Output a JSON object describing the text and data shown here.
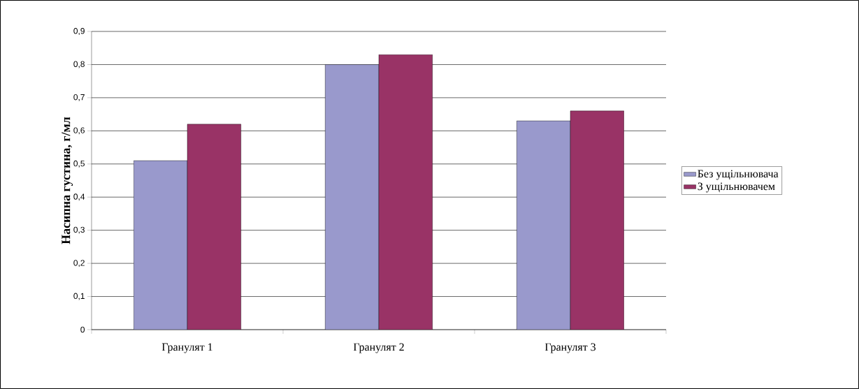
{
  "chart_data": {
    "type": "bar",
    "ylabel": "Насипна густина, г/мл",
    "categories": [
      "Гранулят 1",
      "Гранулят 2",
      "Гранулят 3"
    ],
    "series": [
      {
        "name": "Без ущільнювача",
        "color": "#9999cc",
        "values": [
          0.51,
          0.8,
          0.63
        ]
      },
      {
        "name": "З ущільнювачем",
        "color": "#993366",
        "values": [
          0.62,
          0.83,
          0.66
        ]
      }
    ],
    "ylim": [
      0,
      0.9
    ],
    "yticks": [
      {
        "value": 0,
        "label": "0"
      },
      {
        "value": 0.1,
        "label": "0,1"
      },
      {
        "value": 0.2,
        "label": "0,2"
      },
      {
        "value": 0.3,
        "label": "0,3"
      },
      {
        "value": 0.4,
        "label": "0,4"
      },
      {
        "value": 0.5,
        "label": "0,5"
      },
      {
        "value": 0.6,
        "label": "0,6"
      },
      {
        "value": 0.7,
        "label": "0,7"
      },
      {
        "value": 0.8,
        "label": "0,8"
      },
      {
        "value": 0.9,
        "label": "0,9"
      }
    ],
    "grid": "y",
    "legend": "right"
  }
}
